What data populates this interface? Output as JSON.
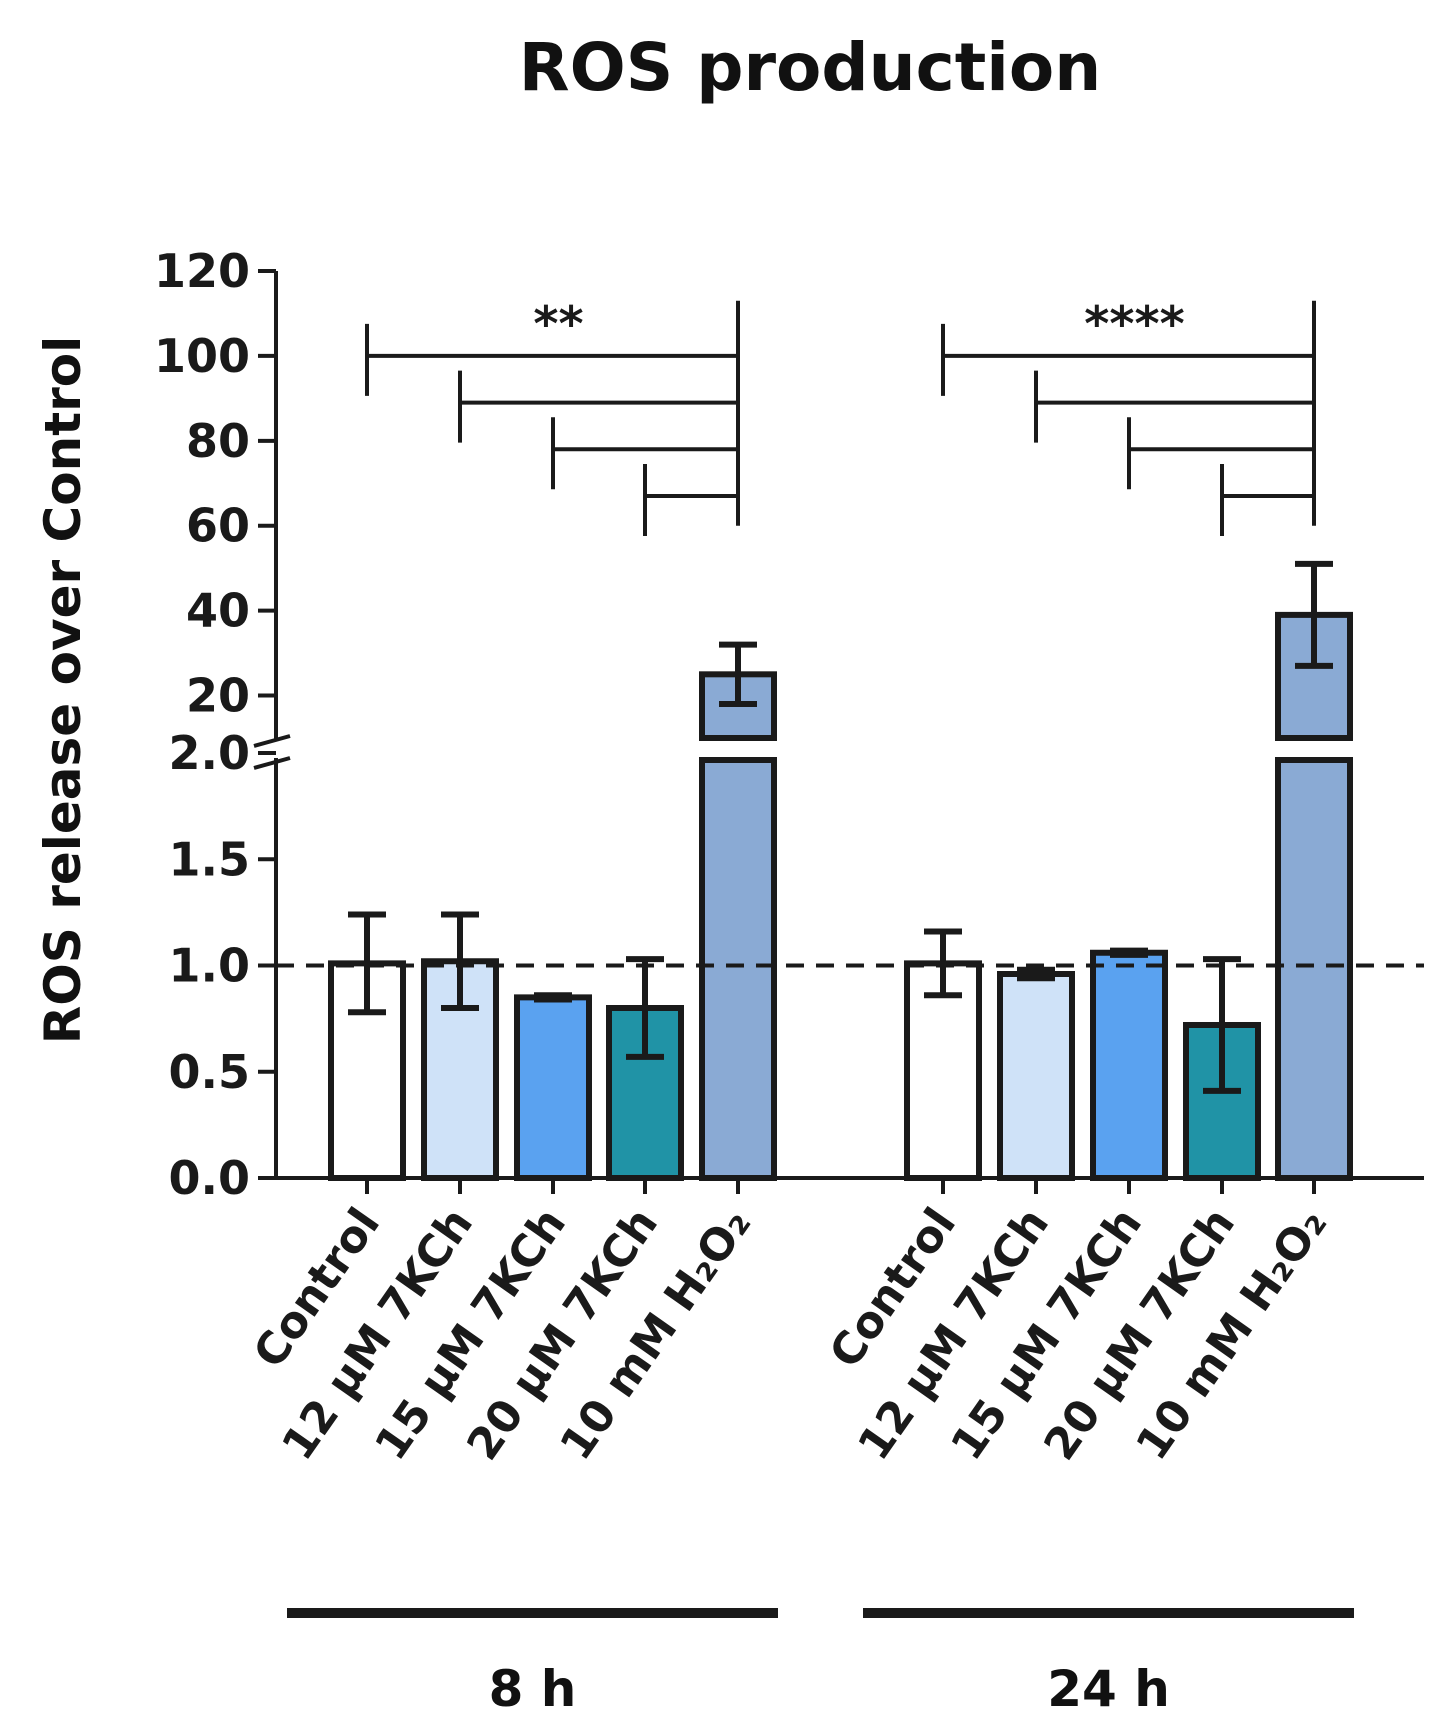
{
  "chart_data": {
    "type": "bar",
    "title": "ROS production",
    "ylabel": "ROS release over Control",
    "xlabel": "",
    "y_axis_break": true,
    "lower_segment": {
      "ylim": [
        0.0,
        2.0
      ],
      "ticks": [
        "0.0",
        "0.5",
        "1.0",
        "1.5",
        "2.0"
      ]
    },
    "upper_segment": {
      "ylim": [
        10,
        120
      ],
      "ticks": [
        "20",
        "40",
        "60",
        "80",
        "100",
        "120"
      ]
    },
    "reference_line": {
      "y": 1.0,
      "style": "dashed"
    },
    "categories": [
      "Control",
      "12 μM 7KCh",
      "15 μM 7KCh",
      "20 μM 7KCh",
      "10 mM H₂O₂"
    ],
    "category_colors": [
      "#ffffff",
      "#cfe2f8",
      "#5aa2f0",
      "#2093a6",
      "#8aaad4"
    ],
    "groups": [
      {
        "label": "8 h",
        "values": [
          1.01,
          1.02,
          0.85,
          0.8,
          25
        ],
        "errors": [
          0.23,
          0.22,
          0.01,
          0.23,
          7
        ],
        "significance": "**"
      },
      {
        "label": "24 h",
        "values": [
          1.01,
          0.96,
          1.06,
          0.72,
          39
        ],
        "errors": [
          0.15,
          0.02,
          0.01,
          0.31,
          12
        ],
        "significance": "****"
      }
    ],
    "grid": false,
    "legend": "none"
  }
}
